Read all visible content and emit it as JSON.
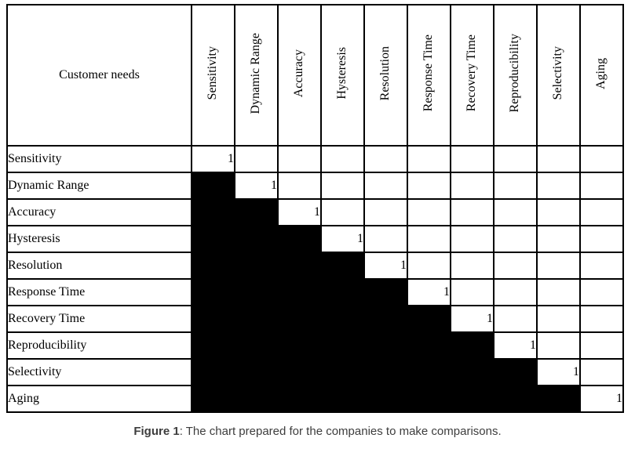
{
  "figure": {
    "table": {
      "corner_label": "Customer needs",
      "columns": [
        "Sensitivity",
        "Dynamic Range",
        "Accuracy",
        "Hysteresis",
        "Resolution",
        "Response Time",
        "Recovery Time",
        "Reproducibility",
        "Selectivity",
        "Aging"
      ],
      "rows": [
        {
          "label": "Sensitivity",
          "cells": [
            "1",
            "",
            "",
            "",
            "",
            "",
            "",
            "",
            "",
            ""
          ]
        },
        {
          "label": "Dynamic Range",
          "cells": [
            "black",
            "1",
            "",
            "",
            "",
            "",
            "",
            "",
            "",
            ""
          ]
        },
        {
          "label": "Accuracy",
          "cells": [
            "black",
            "black",
            "1",
            "",
            "",
            "",
            "",
            "",
            "",
            ""
          ]
        },
        {
          "label": "Hysteresis",
          "cells": [
            "black",
            "black",
            "black",
            "1",
            "",
            "",
            "",
            "",
            "",
            ""
          ]
        },
        {
          "label": "Resolution",
          "cells": [
            "black",
            "black",
            "black",
            "black",
            "1",
            "",
            "",
            "",
            "",
            ""
          ]
        },
        {
          "label": "Response Time",
          "cells": [
            "black",
            "black",
            "black",
            "black",
            "black",
            "1",
            "",
            "",
            "",
            ""
          ]
        },
        {
          "label": "Recovery Time",
          "cells": [
            "black",
            "black",
            "black",
            "black",
            "black",
            "black",
            "1",
            "",
            "",
            ""
          ]
        },
        {
          "label": "Reproducibility",
          "cells": [
            "black",
            "black",
            "black",
            "black",
            "black",
            "black",
            "black",
            "1",
            "",
            ""
          ]
        },
        {
          "label": "Selectivity",
          "cells": [
            "black",
            "black",
            "black",
            "black",
            "black",
            "black",
            "black",
            "black",
            "1",
            ""
          ]
        },
        {
          "label": "Aging",
          "cells": [
            "black",
            "black",
            "black",
            "black",
            "black",
            "black",
            "black",
            "black",
            "black",
            "1"
          ]
        }
      ],
      "filled_cell_token": "black",
      "diagonal_value": "1"
    },
    "caption": {
      "prefix": "Figure 1",
      "rest": ": The chart prepared for the companies to make comparisons."
    },
    "colors": {
      "border": "#000000",
      "filled_cell": "#000000",
      "background": "#ffffff",
      "caption_text": "#3d3d3d"
    }
  }
}
